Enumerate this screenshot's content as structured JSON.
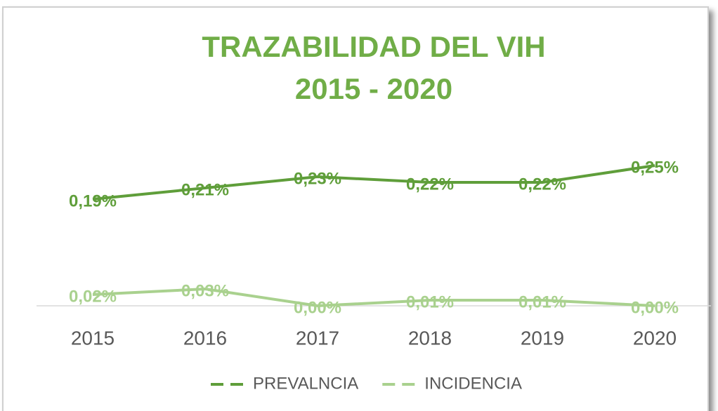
{
  "chart_data": {
    "type": "line",
    "title": "TRAZABILIDAD DEL VIH",
    "subtitle": "2015 - 2020",
    "categories": [
      "2015",
      "2016",
      "2017",
      "2018",
      "2019",
      "2020"
    ],
    "ylim": [
      0,
      0.25
    ],
    "legend": "bottom",
    "series": [
      {
        "name": "PREVALNCIA",
        "color": "#5f9e3a",
        "values": [
          0.19,
          0.21,
          0.23,
          0.22,
          0.22,
          0.25
        ],
        "value_labels": [
          "0,19%",
          "0,21%",
          "0,23%",
          "0,22%",
          "0,22%",
          "0,25%"
        ]
      },
      {
        "name": "INCIDENCIA",
        "color": "#a9d18e",
        "values": [
          0.02,
          0.03,
          0.0,
          0.01,
          0.01,
          0.0
        ],
        "value_labels": [
          "0,02%",
          "0,03%",
          "0,00%",
          "0,01%",
          "0,01%",
          "0,00%"
        ]
      }
    ]
  }
}
